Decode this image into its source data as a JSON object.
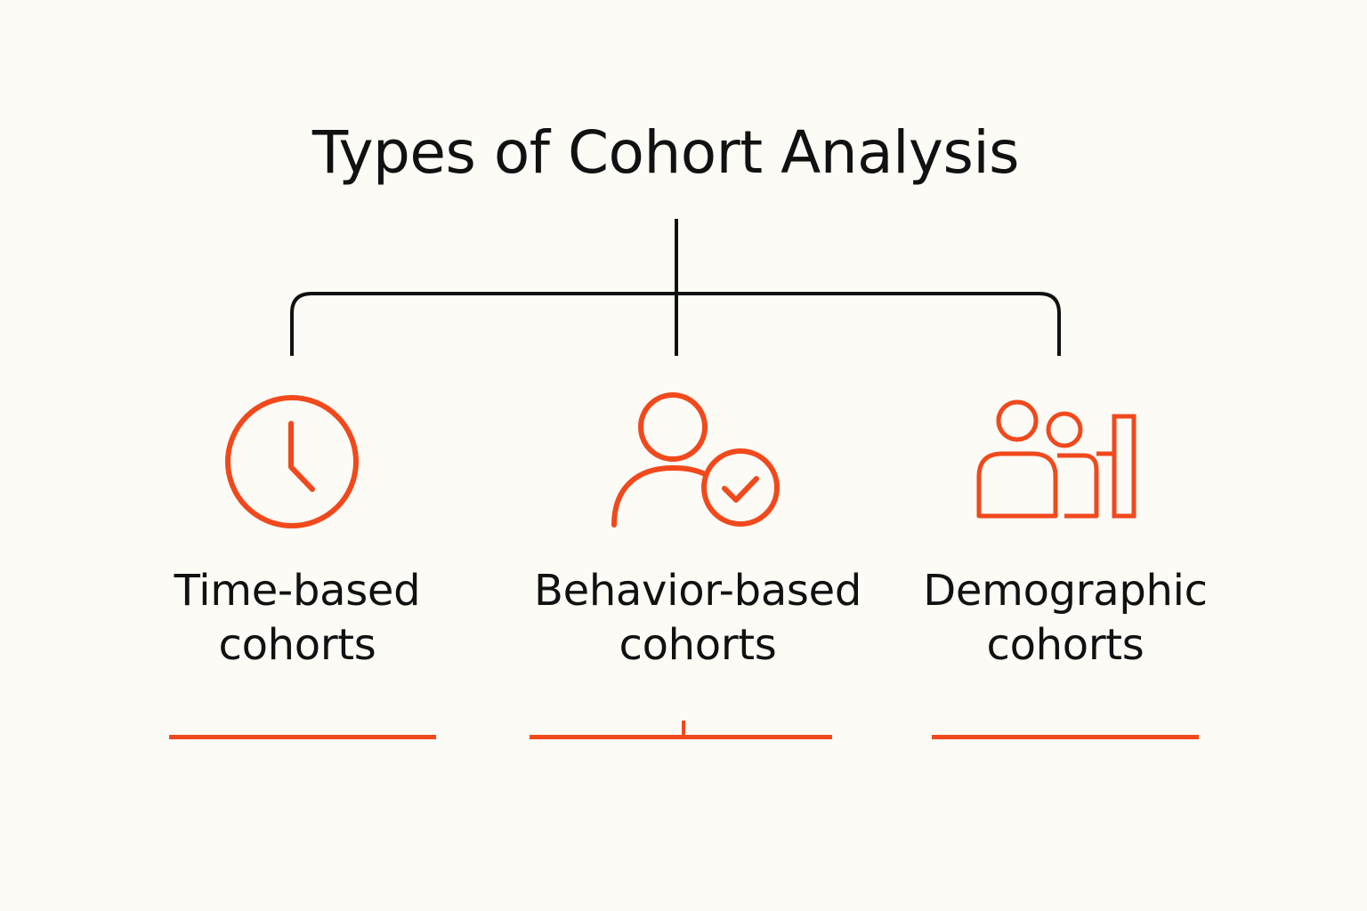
{
  "title": "Types of Cohort Analysis",
  "colors": {
    "accent": "#f1491c",
    "line": "#111111",
    "background": "#fcfbf6"
  },
  "categories": [
    {
      "icon": "clock-icon",
      "label_line1": "Time-based",
      "label_line2": "cohorts"
    },
    {
      "icon": "user-check-icon",
      "label_line1": "Behavior-based",
      "label_line2": "cohorts"
    },
    {
      "icon": "group-bar-icon",
      "label_line1": "Demographic",
      "label_line2": "cohorts"
    }
  ]
}
